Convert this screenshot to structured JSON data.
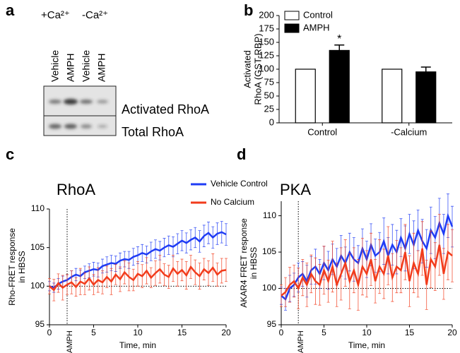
{
  "blot": {
    "label": "a",
    "conditions": [
      "+Ca²⁺",
      "-Ca²⁺"
    ],
    "lanes": [
      "Vehicle",
      "AMPH",
      "Vehicle",
      "AMPH"
    ],
    "rows": [
      "Activated RhoA",
      "Total RhoA"
    ]
  },
  "chart_data": [
    {
      "type": "bar",
      "label": "b",
      "ylabel": [
        "Activated",
        "RhoA (GST-RBP)"
      ],
      "categories": [
        "Control",
        "-Calcium"
      ],
      "series": [
        {
          "name": "Control",
          "color": "#ffffff",
          "values": [
            100,
            100
          ]
        },
        {
          "name": "AMPH",
          "color": "#000000",
          "values": [
            135,
            95
          ],
          "errors": [
            10,
            9
          ]
        }
      ],
      "annotation": "*",
      "ylim": [
        0,
        200
      ],
      "yticks": [
        0,
        25,
        50,
        75,
        100,
        125,
        150,
        175,
        200
      ],
      "legend": "top-left"
    },
    {
      "type": "line",
      "label": "c",
      "title": "RhoA",
      "ylabel": [
        "Rho-FRET response",
        "in HBSS"
      ],
      "xlabel": "Time, min",
      "marker": {
        "text": "AMPH",
        "x": 2
      },
      "baseline": 100,
      "xlim": [
        0,
        20
      ],
      "xticks": [
        0,
        5,
        10,
        15,
        20
      ],
      "ylim": [
        95,
        110
      ],
      "yticks": [
        95,
        100,
        105,
        110
      ],
      "x": [
        0,
        0.5,
        1,
        1.5,
        2,
        2.5,
        3,
        3.5,
        4,
        4.5,
        5,
        5.5,
        6,
        6.5,
        7,
        7.5,
        8,
        8.5,
        9,
        9.5,
        10,
        10.5,
        11,
        11.5,
        12,
        12.5,
        13,
        13.5,
        14,
        14.5,
        15,
        15.5,
        16,
        16.5,
        17,
        17.5,
        18,
        18.5,
        19,
        19.5,
        20
      ],
      "series": [
        {
          "name": "Vehicle Control",
          "color": "#1f3cf5",
          "values": [
            100,
            99.8,
            100.3,
            100.6,
            100.8,
            101.2,
            101.5,
            101.3,
            101.8,
            102,
            102.2,
            102.1,
            102.6,
            102.8,
            103,
            102.9,
            103.3,
            103.5,
            103.4,
            103.8,
            104,
            104.3,
            104.1,
            104.5,
            104.8,
            104.6,
            105,
            105.3,
            105.1,
            105.5,
            105.9,
            105.6,
            106,
            106.3,
            105.8,
            106.5,
            106.9,
            106.3,
            106.8,
            107,
            106.7
          ],
          "errors": [
            0.6,
            0.6,
            0.7,
            0.7,
            0.7,
            0.8,
            0.8,
            0.8,
            0.8,
            0.9,
            0.9,
            0.9,
            0.9,
            1,
            1,
            1,
            1,
            1,
            1.1,
            1.1,
            1.1,
            1.1,
            1.1,
            1.2,
            1.2,
            1.2,
            1.2,
            1.2,
            1.3,
            1.3,
            1.3,
            1.3,
            1.3,
            1.3,
            1.4,
            1.4,
            1.4,
            1.4,
            1.4,
            1.4,
            1.4
          ]
        },
        {
          "name": "No Calcium",
          "color": "#f23c1c",
          "values": [
            100,
            99.5,
            100.4,
            99.8,
            100.2,
            100.5,
            99.9,
            100.6,
            100.3,
            101,
            100.2,
            100.8,
            100.5,
            101.2,
            100.6,
            101.5,
            100.9,
            101.8,
            101.2,
            100.8,
            101.6,
            101.3,
            102,
            101.1,
            101.7,
            102.2,
            101.5,
            101.2,
            102.3,
            101.6,
            102.1,
            101.4,
            102.5,
            101.8,
            101.3,
            102.2,
            101.7,
            102.4,
            101.5,
            102,
            102.1
          ],
          "errors": [
            1.0,
            1.4,
            1.2,
            1.6,
            1.3,
            1.5,
            1.2,
            1.7,
            1.4,
            1.5,
            1.3,
            1.6,
            1.5,
            1.4,
            1.7,
            1.3,
            1.6,
            1.5,
            1.8,
            1.4,
            1.6,
            1.5,
            1.7,
            1.3,
            1.6,
            1.8,
            1.4,
            1.5,
            1.7,
            1.6,
            1.4,
            1.8,
            1.5,
            1.6,
            1.7,
            1.4,
            1.6,
            1.8,
            1.5,
            1.6,
            1.5
          ]
        }
      ]
    },
    {
      "type": "line",
      "label": "d",
      "title": "PKA",
      "ylabel": [
        "AKAR4 FRET response",
        "in HBSS"
      ],
      "xlabel": "Time, min",
      "marker": {
        "text": "AMPH",
        "x": 2
      },
      "baseline": 100,
      "xlim": [
        0,
        20
      ],
      "xticks": [
        0,
        5,
        10,
        15,
        20
      ],
      "ylim": [
        95,
        112
      ],
      "yticks": [
        95,
        100,
        105,
        110
      ],
      "x": [
        0,
        0.5,
        1,
        1.5,
        2,
        2.5,
        3,
        3.5,
        4,
        4.5,
        5,
        5.5,
        6,
        6.5,
        7,
        7.5,
        8,
        8.5,
        9,
        9.5,
        10,
        10.5,
        11,
        11.5,
        12,
        12.5,
        13,
        13.5,
        14,
        14.5,
        15,
        15.5,
        16,
        16.5,
        17,
        17.5,
        18,
        18.5,
        19,
        19.5,
        20
      ],
      "series": [
        {
          "color": "#1f3cf5",
          "values": [
            99,
            98.5,
            100,
            100.5,
            101.5,
            102,
            101,
            102.5,
            103,
            102,
            103.5,
            102.5,
            104,
            103,
            104.5,
            103.5,
            105,
            104,
            103.5,
            105.5,
            104,
            106,
            104.5,
            105,
            106.5,
            104.5,
            106,
            105,
            107,
            105.5,
            107.5,
            106,
            108,
            106.5,
            105.5,
            108,
            107,
            109,
            107.5,
            110,
            108.5
          ],
          "errors": [
            1.2,
            1.5,
            1.8,
            1.6,
            2.0,
            1.7,
            2.2,
            1.9,
            2.4,
            2.0,
            2.3,
            2.6,
            2.1,
            2.5,
            2.8,
            2.2,
            2.6,
            3.0,
            2.4,
            2.7,
            2.5,
            2.9,
            2.3,
            2.7,
            3.2,
            2.5,
            2.8,
            3.0,
            2.6,
            3.1,
            2.7,
            3.3,
            2.8,
            3.0,
            2.6,
            3.2,
            2.9,
            3.4,
            2.7,
            3.0,
            2.8
          ]
        },
        {
          "color": "#f23c1c",
          "values": [
            99,
            99.5,
            100.5,
            101,
            100,
            101.5,
            100.5,
            102,
            101,
            100.5,
            102.5,
            101,
            103,
            100.5,
            102,
            103.5,
            101,
            102.5,
            100.5,
            103,
            102,
            104,
            101,
            103,
            102,
            104.5,
            101.5,
            103,
            102.5,
            105,
            101,
            103.5,
            102,
            105.5,
            100.5,
            104,
            103,
            106,
            102,
            105,
            104.5
          ],
          "errors": [
            1.5,
            2.0,
            2.4,
            2.2,
            2.8,
            2.5,
            3.0,
            2.6,
            3.2,
            2.8,
            3.3,
            2.9,
            3.5,
            3.0,
            3.6,
            3.2,
            3.8,
            3.1,
            3.5,
            3.9,
            3.2,
            3.6,
            3.0,
            3.7,
            3.4,
            4.0,
            3.3,
            3.6,
            3.1,
            3.8,
            3.5,
            4.1,
            3.2,
            3.7,
            3.4,
            3.9,
            3.3,
            4.2,
            3.5,
            3.8,
            3.6
          ]
        }
      ]
    }
  ]
}
